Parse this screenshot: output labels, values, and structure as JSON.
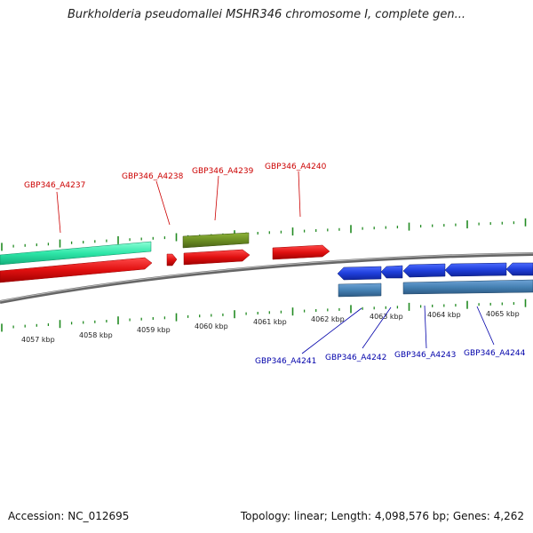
{
  "title": "Burkholderia pseudomallei MSHR346 chromosome I, complete gen...",
  "footer": {
    "accession": "Accession: NC_012695",
    "summary": "Topology: linear; Length: 4,098,576 bp; Genes: 4,262"
  },
  "colors": {
    "forward_label": "#cc0000",
    "reverse_label": "#0000aa",
    "ruler_tick": "#228b22",
    "cds_red": "#e01010",
    "cds_blue": "#1f3fdb",
    "cds_steel": "#4682b4",
    "cds_olive": "#6b8e23",
    "cds_teal": "#2ee6a8",
    "backbone": "#777777"
  },
  "ruler_labels": [
    "4057 kbp",
    "4058 kbp",
    "4059 kbp",
    "4060 kbp",
    "4061 kbp",
    "4062 kbp",
    "4063 kbp",
    "4064 kbp",
    "4065 kbp"
  ],
  "gene_labels": {
    "forward": [
      "GBP346_A4237",
      "GBP346_A4238",
      "GBP346_A4239",
      "GBP346_A4240"
    ],
    "reverse": [
      "GBP346_A4241",
      "GBP346_A4242",
      "GBP346_A4243",
      "GBP346_A4244"
    ]
  }
}
